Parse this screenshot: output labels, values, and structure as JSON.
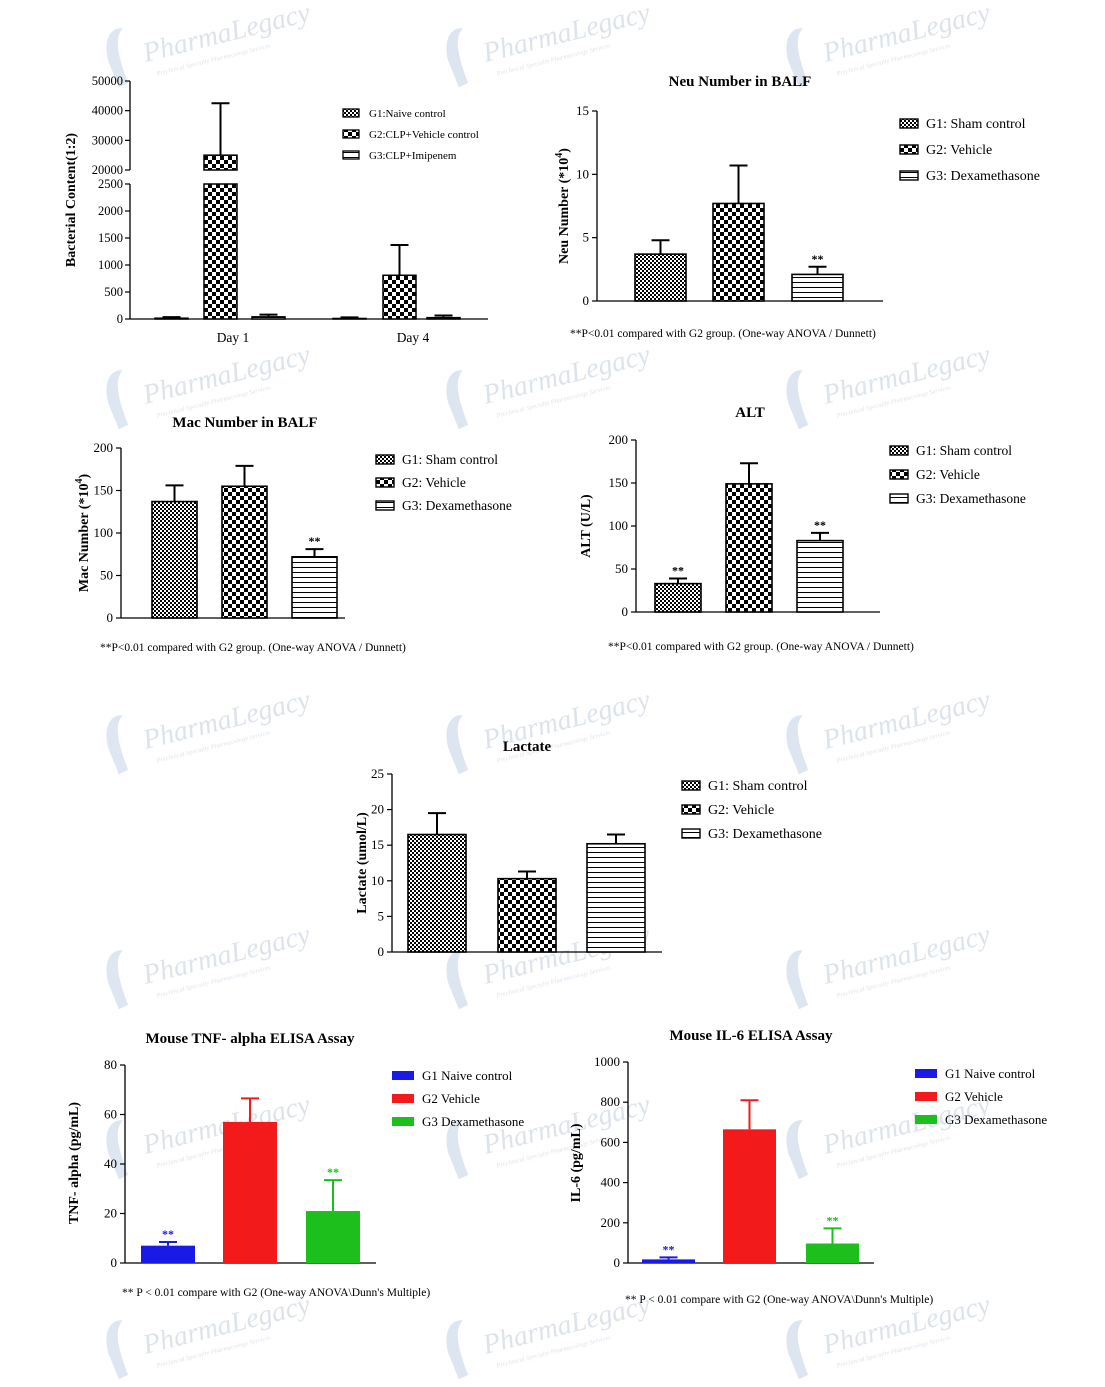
{
  "watermark": {
    "brand": "PharmaLegacy",
    "tagline": "Preclinical Specialty Pharmacology Services"
  },
  "chart_data": [
    {
      "id": "bacterial",
      "type": "bar",
      "title": "",
      "xlabel": "",
      "ylabel": "Bacterial Content(1:2)",
      "categories": [
        "Day 1",
        "Day 4"
      ],
      "axis_break": {
        "lower": [
          0,
          2500
        ],
        "upper": [
          20000,
          50000
        ]
      },
      "yticks_lower": [
        "0",
        "500",
        "1000",
        "1500",
        "2000",
        "2500"
      ],
      "yticks_upper": [
        "20000",
        "30000",
        "40000",
        "50000"
      ],
      "legend": {
        "placement": "top-right",
        "entries": [
          "G1:Naive control",
          "G2:CLP+Vehicle control",
          "G3:CLP+Imipenem"
        ]
      },
      "series": [
        {
          "name": "G1:Naive control",
          "pattern": "fine-check",
          "values": [
            15,
            10
          ],
          "errors": [
            20,
            20
          ]
        },
        {
          "name": "G2:CLP+Vehicle control",
          "pattern": "check",
          "values": [
            25000,
            810
          ],
          "errors": [
            17500,
            560
          ]
        },
        {
          "name": "G3:CLP+Imipenem",
          "pattern": "hstripe",
          "values": [
            40,
            25
          ],
          "errors": [
            40,
            40
          ]
        }
      ]
    },
    {
      "id": "neu",
      "type": "bar",
      "title": "Neu Number in BALF",
      "ylabel": "Neu Number (*10",
      "ylabel_sup": "4",
      "ylabel_end": ")",
      "categories": [
        "G1: Sham control",
        "G2: Vehicle",
        "G3: Dexamethasone"
      ],
      "ylim": [
        0,
        15
      ],
      "yticks": [
        "0",
        "5",
        "10",
        "15"
      ],
      "values": [
        3.7,
        7.7,
        2.1
      ],
      "errors": [
        1.1,
        3.0,
        0.6
      ],
      "markers": [
        "",
        "",
        "**"
      ],
      "legend": {
        "placement": "top-right",
        "entries": [
          "G1: Sham control",
          "G2: Vehicle",
          "G3: Dexamethasone"
        ]
      },
      "footnote": "**P<0.01 compared with G2  group. (One-way ANOVA / Dunnett)"
    },
    {
      "id": "mac",
      "type": "bar",
      "title": "Mac Number in BALF",
      "ylabel": "Mac Number  (*10",
      "ylabel_sup": "4",
      "ylabel_end": ")",
      "categories": [
        "G1: Sham control",
        "G2: Vehicle",
        "G3: Dexamethasone"
      ],
      "ylim": [
        0,
        200
      ],
      "yticks": [
        "0",
        "50",
        "100",
        "150",
        "200"
      ],
      "values": [
        137,
        155,
        72
      ],
      "errors": [
        19,
        24,
        9
      ],
      "markers": [
        "",
        "",
        "**"
      ],
      "legend": {
        "placement": "top-right",
        "entries": [
          "G1: Sham control",
          "G2: Vehicle",
          "G3: Dexamethasone"
        ]
      },
      "footnote": "**P<0.01 compared with G2  group. (One-way ANOVA / Dunnett)"
    },
    {
      "id": "alt",
      "type": "bar",
      "title": "ALT",
      "ylabel": "ALT (U/L)",
      "categories": [
        "G1: Sham control",
        "G2: Vehicle",
        "G3: Dexamethasone"
      ],
      "ylim": [
        0,
        200
      ],
      "yticks": [
        "0",
        "50",
        "100",
        "150",
        "200"
      ],
      "values": [
        33,
        149,
        83
      ],
      "errors": [
        6,
        24,
        9
      ],
      "markers": [
        "**",
        "",
        "**"
      ],
      "legend": {
        "placement": "top-right",
        "entries": [
          "G1: Sham control",
          "G2: Vehicle",
          "G3: Dexamethasone"
        ]
      },
      "footnote": "**P<0.01 compared with G2  group. (One-way ANOVA / Dunnett)"
    },
    {
      "id": "lactate",
      "type": "bar",
      "title": "Lactate",
      "ylabel": "Lactate (umol/L)",
      "categories": [
        "G1: Sham control",
        "G2: Vehicle",
        "G3: Dexamethasone"
      ],
      "ylim": [
        0,
        25
      ],
      "yticks": [
        "0",
        "5",
        "10",
        "15",
        "20",
        "25"
      ],
      "values": [
        16.5,
        10.3,
        15.2
      ],
      "errors": [
        3.0,
        1.0,
        1.3
      ],
      "markers": [
        "",
        "",
        ""
      ],
      "legend": {
        "placement": "top-right",
        "entries": [
          "G1: Sham control",
          "G2: Vehicle",
          "G3: Dexamethasone"
        ]
      }
    },
    {
      "id": "tnf",
      "type": "bar",
      "title": "Mouse TNF- alpha ELISA Assay",
      "ylabel": "TNF- alpha (pg/mL)",
      "categories": [
        "G1 Naive control",
        "G2 Vehicle",
        "G3 Dexamethasone"
      ],
      "ylim": [
        0,
        80
      ],
      "yticks": [
        "0",
        "20",
        "40",
        "60",
        "80"
      ],
      "values": [
        7,
        57,
        21
      ],
      "errors": [
        1.5,
        9.5,
        12.5
      ],
      "markers": [
        "**",
        "",
        "**"
      ],
      "colors": [
        "#1a1ae6",
        "#f21a1a",
        "#1dbf1d"
      ],
      "legend": {
        "placement": "top-right",
        "entries": [
          "G1 Naive control",
          "G2 Vehicle",
          "G3 Dexamethasone"
        ]
      },
      "footnote": "** P < 0.01 compare with G2 (One-way ANOVA\\Dunn's Multiple)"
    },
    {
      "id": "il6",
      "type": "bar",
      "title": "Mouse IL-6 ELISA Assay",
      "ylabel": "IL-6 (pg/mL)",
      "categories": [
        "G1 Naive control",
        "G2 Vehicle",
        "G3 Dexamethasone"
      ],
      "ylim": [
        0,
        1000
      ],
      "yticks": [
        "0",
        "200",
        "400",
        "600",
        "800",
        "1000"
      ],
      "values": [
        18,
        665,
        97
      ],
      "errors": [
        10,
        145,
        75
      ],
      "markers": [
        "**",
        "",
        "**"
      ],
      "colors": [
        "#1a1ae6",
        "#f21a1a",
        "#1dbf1d"
      ],
      "legend": {
        "placement": "top-right",
        "entries": [
          "G1 Naive control",
          "G2 Vehicle",
          "G3 Dexamethasone"
        ]
      },
      "footnote": "** P < 0.01 compare with G2 (One-way ANOVA\\Dunn's Multiple)"
    }
  ]
}
